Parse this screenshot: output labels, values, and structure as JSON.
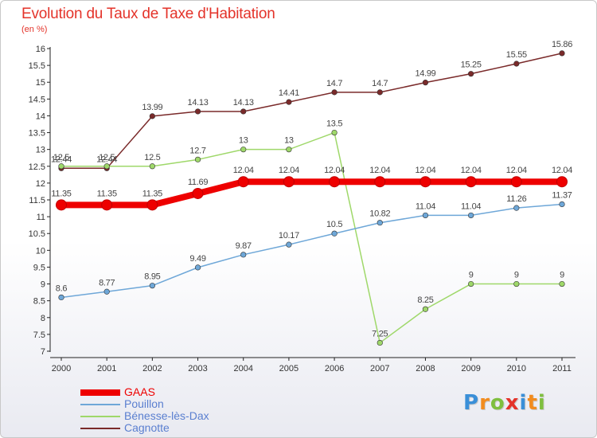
{
  "header": {
    "title": "Evolution du Taux de Taxe d'Habitation",
    "unit": "(en %)"
  },
  "logo": {
    "letters": [
      "P",
      "r",
      "o",
      "x",
      "i",
      "t",
      "i"
    ],
    "colors": [
      "#3a8fd8",
      "#f28c1e",
      "#7fbf3f",
      "#e4332a",
      "#3a8fd8",
      "#f28c1e",
      "#7fbf3f"
    ]
  },
  "chart_data": {
    "type": "line",
    "title": "Evolution du Taux de Taxe d'Habitation",
    "ylabel": "(en %)",
    "xlabel": "",
    "x": [
      "2000",
      "2001",
      "2002",
      "2003",
      "2004",
      "2005",
      "2006",
      "2007",
      "2008",
      "2009",
      "2010",
      "2011"
    ],
    "ylim": [
      7,
      16
    ],
    "yticks": [
      "7",
      "7.5",
      "8",
      "8.5",
      "9",
      "9.5",
      "10",
      "10.5",
      "11",
      "11.5",
      "12",
      "12.5",
      "13",
      "13.5",
      "14",
      "14.5",
      "15",
      "15.5",
      "16"
    ],
    "grid": false,
    "legend_position": "bottom-left",
    "series": [
      {
        "name": "Cagnotte",
        "color": "#7a2a2a",
        "values": [
          12.44,
          12.44,
          13.99,
          14.13,
          14.13,
          14.41,
          14.7,
          14.7,
          14.99,
          15.25,
          15.55,
          15.86
        ],
        "labels": [
          "12.44",
          "12.44",
          "13.99",
          "14.13",
          "14.13",
          "14.41",
          "14.7",
          "14.7",
          "14.99",
          "15.25",
          "15.55",
          "15.86"
        ]
      },
      {
        "name": "Bénesse-lès-Dax",
        "color": "#9fd86a",
        "values": [
          12.5,
          12.5,
          12.5,
          12.7,
          13,
          13,
          13.5,
          7.25,
          8.25,
          9,
          9,
          9
        ],
        "labels": [
          "12.5",
          "12.5",
          "12.5",
          "12.7",
          "13",
          "13",
          "13.5",
          "7.25",
          "8.25",
          "9",
          "9",
          "9"
        ]
      },
      {
        "name": "Pouillon",
        "color": "#6ea7d8",
        "values": [
          8.6,
          8.77,
          8.95,
          9.49,
          9.87,
          10.17,
          10.5,
          10.82,
          11.04,
          11.04,
          11.26,
          11.37
        ],
        "labels": [
          "8.6",
          "8.77",
          "8.95",
          "9.49",
          "9.87",
          "10.17",
          "10.5",
          "10.82",
          "11.04",
          "11.04",
          "11.26",
          "11.37"
        ]
      },
      {
        "name": "GAAS",
        "color": "#ee0000",
        "values": [
          11.35,
          11.35,
          11.35,
          11.69,
          12.04,
          12.04,
          12.04,
          12.04,
          12.04,
          12.04,
          12.04,
          12.04
        ],
        "labels": [
          "11.35",
          "11.35",
          "11.35",
          "11.69",
          "12.04",
          "12.04",
          "12.04",
          "12.04",
          "12.04",
          "12.04",
          "12.04",
          "12.04"
        ]
      }
    ],
    "legend": [
      {
        "name": "GAAS",
        "color": "#ee0000",
        "text_color": "#ee0000"
      },
      {
        "name": "Pouillon",
        "color": "#6ea7d8",
        "text_color": "#5a7fd0"
      },
      {
        "name": "Bénesse-lès-Dax",
        "color": "#9fd86a",
        "text_color": "#5a7fd0"
      },
      {
        "name": "Cagnotte",
        "color": "#7a2a2a",
        "text_color": "#5a7fd0"
      }
    ]
  }
}
